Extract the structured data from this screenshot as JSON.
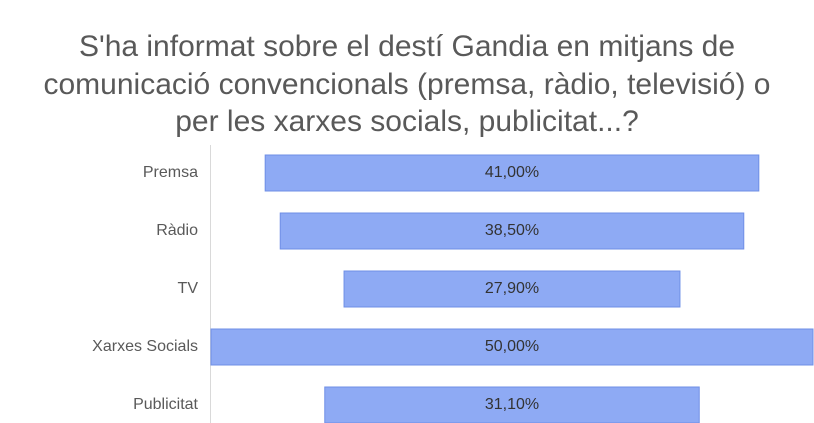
{
  "chart_data": {
    "type": "funnel",
    "title": "S'ha informat sobre el destí Gandia en mitjans de comunicació convencionals (premsa, ràdio, televisió) o per les xarxes socials, publicitat...?",
    "categories": [
      "Premsa",
      "Ràdio",
      "TV",
      "Xarxes Socials",
      "Publicitat"
    ],
    "values": [
      41,
      38.5,
      27.9,
      50,
      31.1
    ],
    "value_labels": [
      "41,00%",
      "38,50%",
      "27,90%",
      "50,00%",
      "31,10%"
    ],
    "color": "#8eaaf4"
  }
}
